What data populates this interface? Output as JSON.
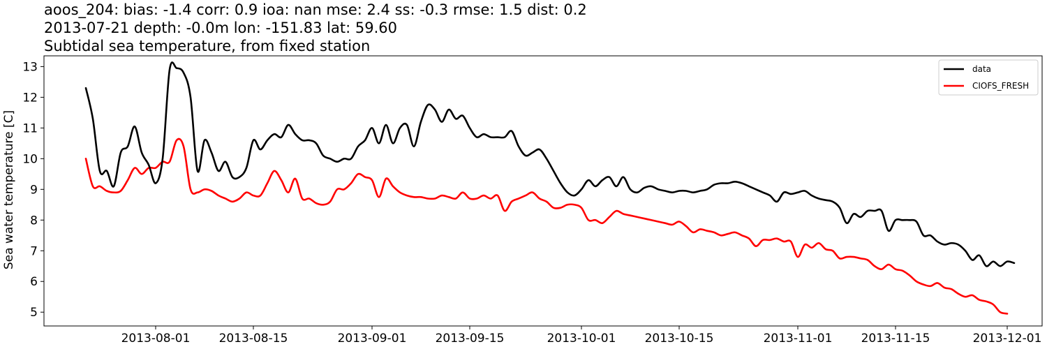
{
  "title_lines": [
    "aoos_204: bias: -1.4  corr: 0.9  ioa: nan  mse: 2.4  ss: -0.3  rmse: 1.5  dist: 0.2",
    "2013-07-21 depth: -0.0m lon: -151.83 lat: 59.60",
    "Subtidal sea temperature, from fixed station"
  ],
  "chart_data": {
    "type": "line",
    "ylabel": "Sea water temperature [C]",
    "xlabel": "",
    "xlim": [
      "2013-07-16",
      "2013-12-06"
    ],
    "ylim": [
      4.55,
      13.35
    ],
    "yticks": [
      5,
      6,
      7,
      8,
      9,
      10,
      11,
      12,
      13
    ],
    "xticks": [
      "2013-08-01",
      "2013-08-15",
      "2013-09-01",
      "2013-09-15",
      "2013-10-01",
      "2013-10-15",
      "2013-11-01",
      "2013-11-15",
      "2013-12-01"
    ],
    "grid": false,
    "legend_position": "top-right",
    "series": [
      {
        "name": "data",
        "color": "#000000",
        "points": [
          [
            "2013-07-22",
            12.3
          ],
          [
            "2013-07-23",
            11.3
          ],
          [
            "2013-07-24",
            9.6
          ],
          [
            "2013-07-25",
            9.6
          ],
          [
            "2013-07-26",
            9.1
          ],
          [
            "2013-07-27",
            10.2
          ],
          [
            "2013-07-28",
            10.4
          ],
          [
            "2013-07-29",
            11.05
          ],
          [
            "2013-07-30",
            10.2
          ],
          [
            "2013-07-31",
            9.8
          ],
          [
            "2013-08-01",
            9.2
          ],
          [
            "2013-08-02",
            10.0
          ],
          [
            "2013-08-03",
            12.9
          ],
          [
            "2013-08-04",
            12.95
          ],
          [
            "2013-08-05",
            12.8
          ],
          [
            "2013-08-06",
            12.0
          ],
          [
            "2013-08-07",
            9.6
          ],
          [
            "2013-08-08",
            10.6
          ],
          [
            "2013-08-09",
            10.2
          ],
          [
            "2013-08-10",
            9.6
          ],
          [
            "2013-08-11",
            9.9
          ],
          [
            "2013-08-12",
            9.4
          ],
          [
            "2013-08-13",
            9.4
          ],
          [
            "2013-08-14",
            9.7
          ],
          [
            "2013-08-15",
            10.6
          ],
          [
            "2013-08-16",
            10.3
          ],
          [
            "2013-08-17",
            10.6
          ],
          [
            "2013-08-18",
            10.8
          ],
          [
            "2013-08-19",
            10.7
          ],
          [
            "2013-08-20",
            11.1
          ],
          [
            "2013-08-21",
            10.8
          ],
          [
            "2013-08-22",
            10.6
          ],
          [
            "2013-08-23",
            10.6
          ],
          [
            "2013-08-24",
            10.5
          ],
          [
            "2013-08-25",
            10.1
          ],
          [
            "2013-08-26",
            10.0
          ],
          [
            "2013-08-27",
            9.9
          ],
          [
            "2013-08-28",
            10.0
          ],
          [
            "2013-08-29",
            10.0
          ],
          [
            "2013-08-30",
            10.4
          ],
          [
            "2013-08-31",
            10.6
          ],
          [
            "2013-09-01",
            11.0
          ],
          [
            "2013-09-02",
            10.5
          ],
          [
            "2013-09-03",
            11.1
          ],
          [
            "2013-09-04",
            10.5
          ],
          [
            "2013-09-05",
            11.0
          ],
          [
            "2013-09-06",
            11.1
          ],
          [
            "2013-09-07",
            10.4
          ],
          [
            "2013-09-08",
            11.2
          ],
          [
            "2013-09-09",
            11.75
          ],
          [
            "2013-09-10",
            11.6
          ],
          [
            "2013-09-11",
            11.2
          ],
          [
            "2013-09-12",
            11.6
          ],
          [
            "2013-09-13",
            11.3
          ],
          [
            "2013-09-14",
            11.4
          ],
          [
            "2013-09-15",
            11.0
          ],
          [
            "2013-09-16",
            10.7
          ],
          [
            "2013-09-17",
            10.8
          ],
          [
            "2013-09-18",
            10.7
          ],
          [
            "2013-09-19",
            10.7
          ],
          [
            "2013-09-20",
            10.7
          ],
          [
            "2013-09-21",
            10.9
          ],
          [
            "2013-09-22",
            10.4
          ],
          [
            "2013-09-23",
            10.1
          ],
          [
            "2013-09-24",
            10.2
          ],
          [
            "2013-09-25",
            10.3
          ],
          [
            "2013-09-26",
            10.0
          ],
          [
            "2013-09-27",
            9.6
          ],
          [
            "2013-09-28",
            9.2
          ],
          [
            "2013-09-29",
            8.9
          ],
          [
            "2013-09-30",
            8.8
          ],
          [
            "2013-10-01",
            9.0
          ],
          [
            "2013-10-02",
            9.3
          ],
          [
            "2013-10-03",
            9.1
          ],
          [
            "2013-10-04",
            9.3
          ],
          [
            "2013-10-05",
            9.4
          ],
          [
            "2013-10-06",
            9.1
          ],
          [
            "2013-10-07",
            9.4
          ],
          [
            "2013-10-08",
            9.0
          ],
          [
            "2013-10-09",
            8.9
          ],
          [
            "2013-10-10",
            9.05
          ],
          [
            "2013-10-11",
            9.1
          ],
          [
            "2013-10-12",
            9.0
          ],
          [
            "2013-10-13",
            8.95
          ],
          [
            "2013-10-14",
            8.9
          ],
          [
            "2013-10-15",
            8.95
          ],
          [
            "2013-10-16",
            8.95
          ],
          [
            "2013-10-17",
            8.9
          ],
          [
            "2013-10-18",
            8.95
          ],
          [
            "2013-10-19",
            9.0
          ],
          [
            "2013-10-20",
            9.15
          ],
          [
            "2013-10-21",
            9.2
          ],
          [
            "2013-10-22",
            9.2
          ],
          [
            "2013-10-23",
            9.25
          ],
          [
            "2013-10-24",
            9.2
          ],
          [
            "2013-10-25",
            9.1
          ],
          [
            "2013-10-26",
            9.0
          ],
          [
            "2013-10-27",
            8.9
          ],
          [
            "2013-10-28",
            8.8
          ],
          [
            "2013-10-29",
            8.6
          ],
          [
            "2013-10-30",
            8.9
          ],
          [
            "2013-10-31",
            8.85
          ],
          [
            "2013-11-01",
            8.9
          ],
          [
            "2013-11-02",
            8.95
          ],
          [
            "2013-11-03",
            8.8
          ],
          [
            "2013-11-04",
            8.7
          ],
          [
            "2013-11-05",
            8.65
          ],
          [
            "2013-11-06",
            8.6
          ],
          [
            "2013-11-07",
            8.4
          ],
          [
            "2013-11-08",
            7.9
          ],
          [
            "2013-11-09",
            8.2
          ],
          [
            "2013-11-10",
            8.1
          ],
          [
            "2013-11-11",
            8.3
          ],
          [
            "2013-11-12",
            8.3
          ],
          [
            "2013-11-13",
            8.3
          ],
          [
            "2013-11-14",
            7.65
          ],
          [
            "2013-11-15",
            8.0
          ],
          [
            "2013-11-16",
            8.0
          ],
          [
            "2013-11-17",
            8.0
          ],
          [
            "2013-11-18",
            7.95
          ],
          [
            "2013-11-19",
            7.5
          ],
          [
            "2013-11-20",
            7.5
          ],
          [
            "2013-11-21",
            7.3
          ],
          [
            "2013-11-22",
            7.2
          ],
          [
            "2013-11-23",
            7.25
          ],
          [
            "2013-11-24",
            7.2
          ],
          [
            "2013-11-25",
            7.0
          ],
          [
            "2013-11-26",
            6.7
          ],
          [
            "2013-11-27",
            6.85
          ],
          [
            "2013-11-28",
            6.5
          ],
          [
            "2013-11-29",
            6.65
          ],
          [
            "2013-11-30",
            6.5
          ],
          [
            "2013-12-01",
            6.65
          ],
          [
            "2013-12-02",
            6.6
          ]
        ]
      },
      {
        "name": "CIOFS_FRESH",
        "color": "#ff0000",
        "points": [
          [
            "2013-07-22",
            10.0
          ],
          [
            "2013-07-23",
            9.1
          ],
          [
            "2013-07-24",
            9.1
          ],
          [
            "2013-07-25",
            8.95
          ],
          [
            "2013-07-26",
            8.9
          ],
          [
            "2013-07-27",
            8.95
          ],
          [
            "2013-07-28",
            9.3
          ],
          [
            "2013-07-29",
            9.7
          ],
          [
            "2013-07-30",
            9.5
          ],
          [
            "2013-07-31",
            9.7
          ],
          [
            "2013-08-01",
            9.7
          ],
          [
            "2013-08-02",
            9.9
          ],
          [
            "2013-08-03",
            9.9
          ],
          [
            "2013-08-04",
            10.6
          ],
          [
            "2013-08-05",
            10.4
          ],
          [
            "2013-08-06",
            9.0
          ],
          [
            "2013-08-07",
            8.9
          ],
          [
            "2013-08-08",
            9.0
          ],
          [
            "2013-08-09",
            8.95
          ],
          [
            "2013-08-10",
            8.8
          ],
          [
            "2013-08-11",
            8.7
          ],
          [
            "2013-08-12",
            8.6
          ],
          [
            "2013-08-13",
            8.7
          ],
          [
            "2013-08-14",
            8.9
          ],
          [
            "2013-08-15",
            8.8
          ],
          [
            "2013-08-16",
            8.8
          ],
          [
            "2013-08-17",
            9.2
          ],
          [
            "2013-08-18",
            9.6
          ],
          [
            "2013-08-19",
            9.3
          ],
          [
            "2013-08-20",
            8.9
          ],
          [
            "2013-08-21",
            9.35
          ],
          [
            "2013-08-22",
            8.7
          ],
          [
            "2013-08-23",
            8.7
          ],
          [
            "2013-08-24",
            8.55
          ],
          [
            "2013-08-25",
            8.5
          ],
          [
            "2013-08-26",
            8.6
          ],
          [
            "2013-08-27",
            9.0
          ],
          [
            "2013-08-28",
            9.0
          ],
          [
            "2013-08-29",
            9.2
          ],
          [
            "2013-08-30",
            9.5
          ],
          [
            "2013-08-31",
            9.4
          ],
          [
            "2013-09-01",
            9.3
          ],
          [
            "2013-09-02",
            8.75
          ],
          [
            "2013-09-03",
            9.35
          ],
          [
            "2013-09-04",
            9.1
          ],
          [
            "2013-09-05",
            8.9
          ],
          [
            "2013-09-06",
            8.8
          ],
          [
            "2013-09-07",
            8.75
          ],
          [
            "2013-09-08",
            8.75
          ],
          [
            "2013-09-09",
            8.7
          ],
          [
            "2013-09-10",
            8.7
          ],
          [
            "2013-09-11",
            8.8
          ],
          [
            "2013-09-12",
            8.75
          ],
          [
            "2013-09-13",
            8.7
          ],
          [
            "2013-09-14",
            8.9
          ],
          [
            "2013-09-15",
            8.7
          ],
          [
            "2013-09-16",
            8.7
          ],
          [
            "2013-09-17",
            8.8
          ],
          [
            "2013-09-18",
            8.7
          ],
          [
            "2013-09-19",
            8.8
          ],
          [
            "2013-09-20",
            8.3
          ],
          [
            "2013-09-21",
            8.6
          ],
          [
            "2013-09-22",
            8.7
          ],
          [
            "2013-09-23",
            8.8
          ],
          [
            "2013-09-24",
            8.9
          ],
          [
            "2013-09-25",
            8.7
          ],
          [
            "2013-09-26",
            8.6
          ],
          [
            "2013-09-27",
            8.4
          ],
          [
            "2013-09-28",
            8.4
          ],
          [
            "2013-09-29",
            8.5
          ],
          [
            "2013-09-30",
            8.5
          ],
          [
            "2013-10-01",
            8.4
          ],
          [
            "2013-10-02",
            8.0
          ],
          [
            "2013-10-03",
            8.0
          ],
          [
            "2013-10-04",
            7.9
          ],
          [
            "2013-10-05",
            8.1
          ],
          [
            "2013-10-06",
            8.3
          ],
          [
            "2013-10-07",
            8.2
          ],
          [
            "2013-10-08",
            8.15
          ],
          [
            "2013-10-09",
            8.1
          ],
          [
            "2013-10-10",
            8.05
          ],
          [
            "2013-10-11",
            8.0
          ],
          [
            "2013-10-12",
            7.95
          ],
          [
            "2013-10-13",
            7.9
          ],
          [
            "2013-10-14",
            7.85
          ],
          [
            "2013-10-15",
            7.95
          ],
          [
            "2013-10-16",
            7.8
          ],
          [
            "2013-10-17",
            7.6
          ],
          [
            "2013-10-18",
            7.7
          ],
          [
            "2013-10-19",
            7.65
          ],
          [
            "2013-10-20",
            7.6
          ],
          [
            "2013-10-21",
            7.5
          ],
          [
            "2013-10-22",
            7.55
          ],
          [
            "2013-10-23",
            7.6
          ],
          [
            "2013-10-24",
            7.5
          ],
          [
            "2013-10-25",
            7.4
          ],
          [
            "2013-10-26",
            7.15
          ],
          [
            "2013-10-27",
            7.35
          ],
          [
            "2013-10-28",
            7.35
          ],
          [
            "2013-10-29",
            7.4
          ],
          [
            "2013-10-30",
            7.3
          ],
          [
            "2013-10-31",
            7.3
          ],
          [
            "2013-11-01",
            6.8
          ],
          [
            "2013-11-02",
            7.2
          ],
          [
            "2013-11-03",
            7.1
          ],
          [
            "2013-11-04",
            7.25
          ],
          [
            "2013-11-05",
            7.05
          ],
          [
            "2013-11-06",
            7.0
          ],
          [
            "2013-11-07",
            6.75
          ],
          [
            "2013-11-08",
            6.8
          ],
          [
            "2013-11-09",
            6.8
          ],
          [
            "2013-11-10",
            6.75
          ],
          [
            "2013-11-11",
            6.7
          ],
          [
            "2013-11-12",
            6.5
          ],
          [
            "2013-11-13",
            6.4
          ],
          [
            "2013-11-14",
            6.55
          ],
          [
            "2013-11-15",
            6.4
          ],
          [
            "2013-11-16",
            6.35
          ],
          [
            "2013-11-17",
            6.2
          ],
          [
            "2013-11-18",
            6.0
          ],
          [
            "2013-11-19",
            5.9
          ],
          [
            "2013-11-20",
            5.85
          ],
          [
            "2013-11-21",
            5.95
          ],
          [
            "2013-11-22",
            5.8
          ],
          [
            "2013-11-23",
            5.75
          ],
          [
            "2013-11-24",
            5.6
          ],
          [
            "2013-11-25",
            5.5
          ],
          [
            "2013-11-26",
            5.55
          ],
          [
            "2013-11-27",
            5.4
          ],
          [
            "2013-11-28",
            5.35
          ],
          [
            "2013-11-29",
            5.25
          ],
          [
            "2013-11-30",
            5.0
          ],
          [
            "2013-12-01",
            4.95
          ]
        ]
      }
    ]
  }
}
